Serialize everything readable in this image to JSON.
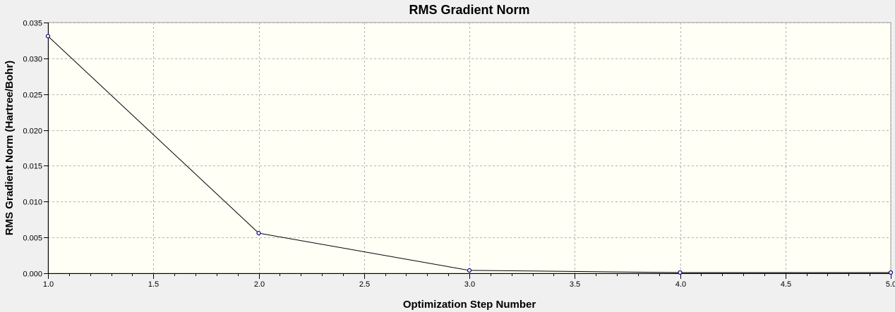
{
  "chart_data": {
    "type": "line",
    "title": "RMS Gradient Norm",
    "xlabel": "Optimization Step Number",
    "ylabel": "RMS Gradient Norm (Hartree/Bohr)",
    "xlim": [
      1.0,
      5.0
    ],
    "ylim": [
      0.0,
      0.035
    ],
    "x_ticks": [
      "1.0",
      "1.5",
      "2.0",
      "2.5",
      "3.0",
      "3.5",
      "4.0",
      "4.5",
      "5.0"
    ],
    "y_ticks": [
      "0.000",
      "0.005",
      "0.010",
      "0.015",
      "0.020",
      "0.025",
      "0.030",
      "0.035"
    ],
    "grid": true,
    "x": [
      1,
      2,
      3,
      4,
      5
    ],
    "series": [
      {
        "values": [
          0.0331,
          0.0056,
          0.0004,
          0.0001,
          0.0001
        ]
      }
    ],
    "colors": {
      "plot_background": "#fffff5",
      "page_background": "#f0f0f0",
      "line": "#000000",
      "marker": "#00008b",
      "grid": "#b4b4b4"
    }
  }
}
